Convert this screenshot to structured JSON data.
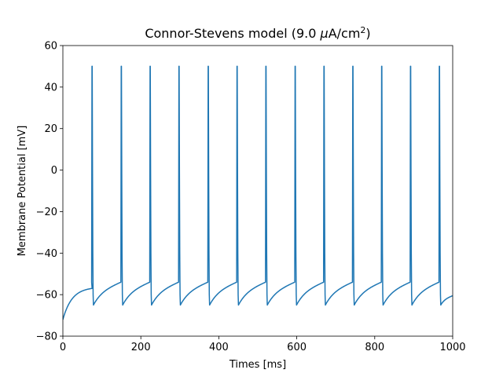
{
  "chart_data": {
    "type": "line",
    "title": "Connor-Stevens model (9.0 μA/cm²)",
    "title_parts": {
      "prefix": "Connor-Stevens model (9.0 ",
      "mu": "μ",
      "unit": "A/cm",
      "sup": "2",
      "suffix": ")"
    },
    "xlabel": "Times [ms]",
    "ylabel": "Membrane Potential [mV]",
    "xlim": [
      0,
      1000
    ],
    "ylim": [
      -80,
      60
    ],
    "xticks": [
      0,
      200,
      400,
      600,
      800,
      1000
    ],
    "yticks": [
      -80,
      -60,
      -40,
      -20,
      0,
      20,
      40,
      60
    ],
    "grid": false,
    "legend": "none",
    "line_color": "#1f77b4",
    "series": [
      {
        "start_value": -72,
        "rest_value_after_spike": -65,
        "pre_spike_value": -57,
        "spike_peak": 50,
        "spike_times": [
          75,
          150,
          224,
          298,
          373,
          447,
          521,
          596,
          670,
          744,
          818,
          892,
          966
        ],
        "end_value": -60.5
      }
    ]
  }
}
